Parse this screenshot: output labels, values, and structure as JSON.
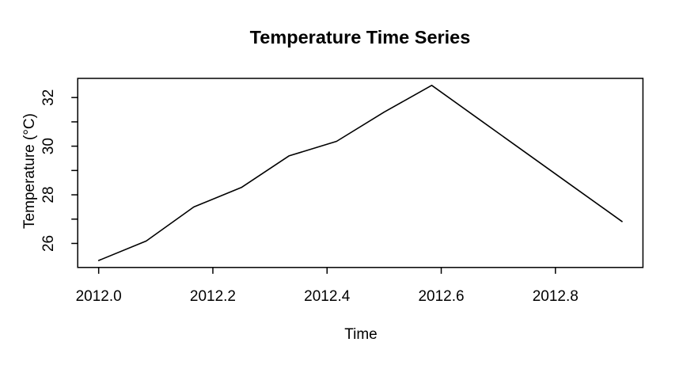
{
  "figure": {
    "background": "#FFFFFF",
    "foreground": "#000000"
  },
  "chart_data": {
    "type": "line",
    "title": "Temperature Time Series",
    "xlabel": "Time",
    "ylabel": "Temperature (°C)",
    "series_name": "Temperature",
    "x": [
      2012.0,
      2012.0833,
      2012.1667,
      2012.25,
      2012.3333,
      2012.4167,
      2012.5,
      2012.5833,
      2012.6667,
      2012.75,
      2012.8333,
      2012.9167
    ],
    "values": [
      25.3,
      26.1,
      27.5,
      28.3,
      29.6,
      30.2,
      31.4,
      32.5,
      31.1,
      29.7,
      28.3,
      26.9
    ],
    "line_color": "#000000",
    "xlim": [
      2011.9633,
      2012.9533
    ],
    "ylim": [
      25.012,
      32.788
    ],
    "x_ticks": {
      "values": [
        2012.0,
        2012.2,
        2012.4,
        2012.6,
        2012.8
      ],
      "labels": [
        "2012.0",
        "2012.2",
        "2012.4",
        "2012.6",
        "2012.8"
      ]
    },
    "y_ticks": {
      "major_values": [
        26,
        28,
        30,
        32
      ],
      "major_labels": [
        "26",
        "28",
        "30",
        "32"
      ],
      "minor_values": [
        27,
        29,
        31
      ]
    },
    "grid": false,
    "legend": null
  }
}
